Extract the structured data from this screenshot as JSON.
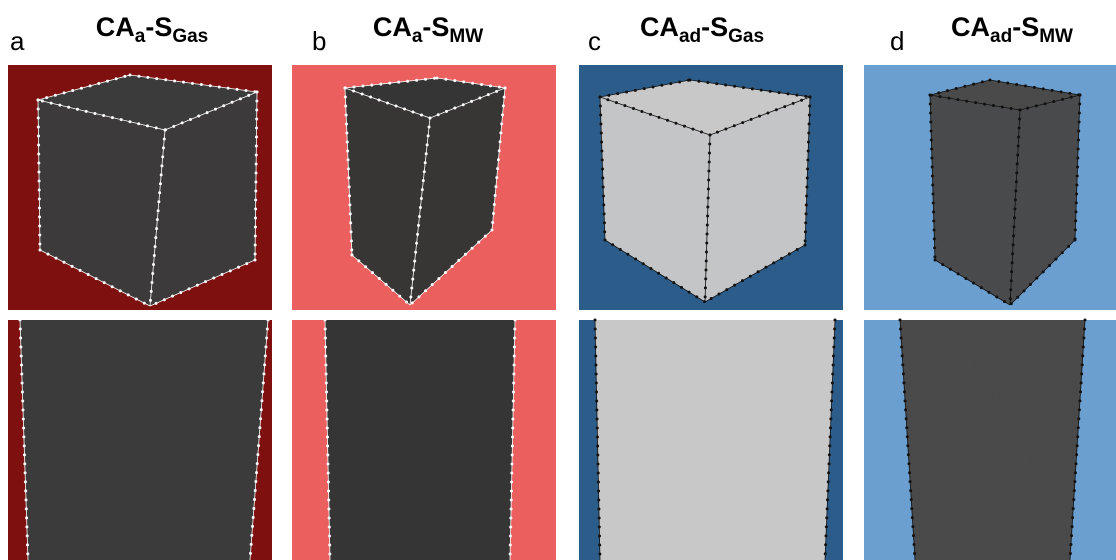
{
  "panels": [
    {
      "label": "a",
      "title": {
        "main1": "CA",
        "sub1": "a",
        "main2": "-S",
        "sub2": "Gas"
      }
    },
    {
      "label": "b",
      "title": {
        "main1": "CA",
        "sub1": "a",
        "main2": "-S",
        "sub2": "MW"
      }
    },
    {
      "label": "c",
      "title": {
        "main1": "CA",
        "sub1": "ad",
        "main2": "-S",
        "sub2": "Gas"
      }
    },
    {
      "label": "d",
      "title": {
        "main1": "CA",
        "sub1": "ad",
        "main2": "-S",
        "sub2": "MW"
      }
    }
  ]
}
